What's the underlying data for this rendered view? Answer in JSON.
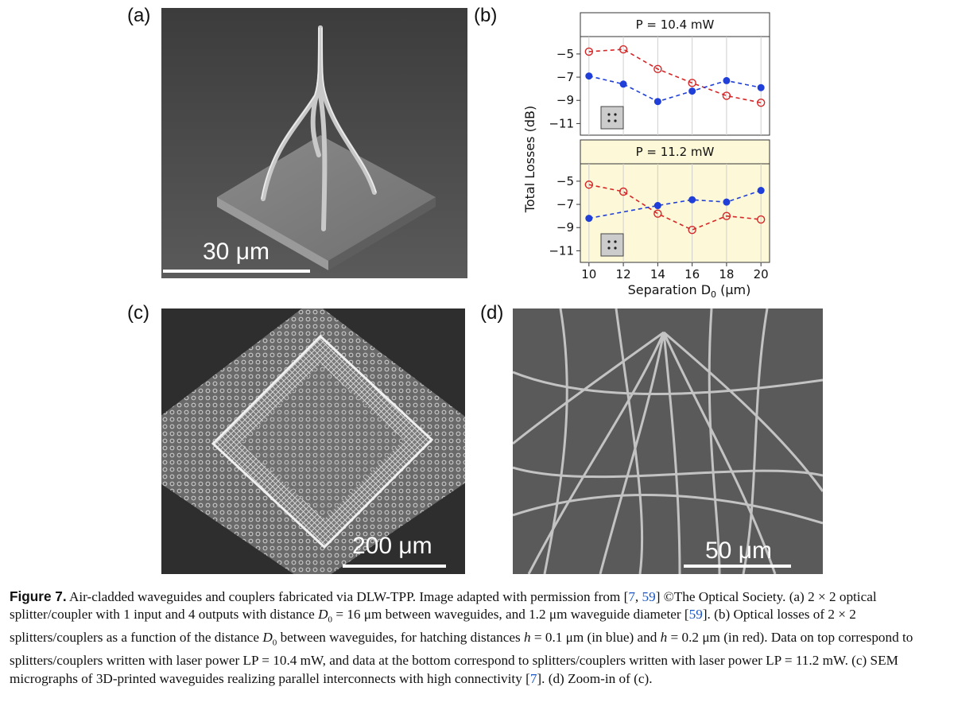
{
  "panels": {
    "a": {
      "label": "(a)",
      "scale": "30 μm"
    },
    "b": {
      "label": "(b)"
    },
    "c": {
      "label": "(c)",
      "scale": "200 μm"
    },
    "d": {
      "label": "(d)",
      "scale": "50 μm"
    }
  },
  "chart_data": {
    "type": "line",
    "ylabel": "Total Losses (dB)",
    "xlabel_main": "Separation D",
    "xlabel_sub": "0",
    "xlabel_unit": " (μm)",
    "x": [
      10,
      12,
      14,
      16,
      18,
      20
    ],
    "xlim": [
      9.5,
      20.5
    ],
    "ylim": [
      -12,
      -3.5
    ],
    "yticks": [
      "−5",
      "−7",
      "−9",
      "−11"
    ],
    "ytick_values": [
      -5,
      -7,
      -9,
      -11
    ],
    "grid": "vertical",
    "subplots": [
      {
        "title": "P = 10.4 mW",
        "background": "#ffffff",
        "inset_icon": "four-dot-icon",
        "series": [
          {
            "color": "#d62728",
            "marker": "open-circle",
            "values": [
              -4.8,
              -4.6,
              -6.3,
              -7.5,
              -8.6,
              -9.2
            ]
          },
          {
            "color": "#1f3fd8",
            "marker": "filled-circle",
            "values": [
              -6.9,
              -7.6,
              -9.1,
              -8.2,
              -7.3,
              -7.9
            ]
          }
        ]
      },
      {
        "title": "P = 11.2 mW",
        "background": "#fdf8d8",
        "inset_icon": "four-dot-icon",
        "series": [
          {
            "color": "#d62728",
            "marker": "open-circle",
            "values": [
              -5.3,
              -5.9,
              -7.8,
              -9.2,
              -8.0,
              -8.3
            ]
          },
          {
            "color": "#1f3fd8",
            "marker": "filled-circle",
            "values": [
              -8.2,
              null,
              -7.1,
              -6.6,
              -6.8,
              -5.8
            ]
          }
        ]
      }
    ]
  },
  "caption": {
    "figure_label": "Figure 7.",
    "s1": " Air-cladded waveguides and couplers fabricated via DLW-TPP. Image adapted with permission from [",
    "ref1": "7",
    "s1b": ", ",
    "ref2": "59",
    "s2": "] ©The Optical Society. (a) 2 × 2 optical splitter/coupler with 1 input and 4 outputs with distance ",
    "d0": "D",
    "d0sub": "0",
    "s3": " = 16 μm between waveguides, and 1.2 μm waveguide diameter [",
    "ref3": "59",
    "s4": "]. (b) Optical losses of 2 × 2 splitters/couplers as a function of the distance ",
    "d0b": "D",
    "d0bsub": "0",
    "s5": " between waveguides, for hatching distances ",
    "h1": "h",
    "s6": " = 0.1 μm (in blue) and ",
    "h2": "h",
    "s7": " = 0.2 μm (in red). Data on top correspond to splitters/couplers written with laser power LP = 10.4 mW, and data at the bottom correspond to splitters/couplers written with laser power LP = 11.2 mW. (c) SEM micrographs of 3D-printed waveguides realizing parallel interconnects with high connectivity [",
    "ref4": "7",
    "s8": "]. (d) Zoom-in of (c)."
  }
}
